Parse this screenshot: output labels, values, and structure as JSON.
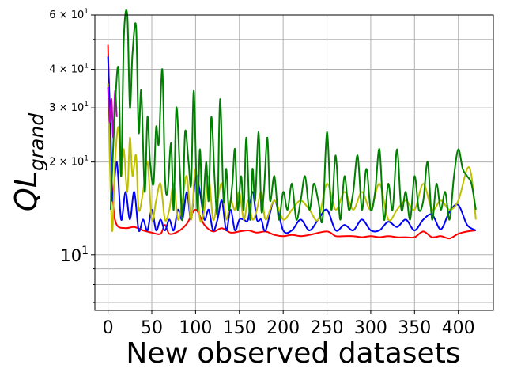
{
  "chart_data": {
    "type": "line",
    "xlabel": "New observed datasets",
    "ylabel_main": "QL",
    "ylabel_sub": "grand",
    "yscale": "log",
    "xlim": [
      -15,
      440
    ],
    "ylim": [
      6.6,
      60
    ],
    "grid": true,
    "x_ticks": [
      0,
      50,
      100,
      150,
      200,
      250,
      300,
      350,
      400
    ],
    "x_tick_labels": [
      "0",
      "50",
      "100",
      "150",
      "200",
      "250",
      "300",
      "350",
      "400"
    ],
    "y_major_ticks": [
      {
        "value": 10,
        "base": "10",
        "exp": "1",
        "mult": ""
      },
      {
        "value": 20,
        "base": "10",
        "exp": "1",
        "mult": "2 × "
      },
      {
        "value": 30,
        "base": "10",
        "exp": "1",
        "mult": "3 × "
      },
      {
        "value": 40,
        "base": "10",
        "exp": "1",
        "mult": "4 × "
      },
      {
        "value": 60,
        "base": "10",
        "exp": "1",
        "mult": "6 × "
      }
    ],
    "y_minor_gridlines": [
      7,
      8,
      9,
      50
    ],
    "series": [
      {
        "color": "#ff0000",
        "x": [
          0,
          3,
          6,
          10,
          20,
          30,
          40,
          50,
          60,
          65,
          70,
          80,
          90,
          100,
          110,
          120,
          130,
          140,
          150,
          160,
          170,
          180,
          190,
          200,
          210,
          220,
          230,
          250,
          260,
          270,
          280,
          290,
          300,
          310,
          320,
          330,
          340,
          350,
          360,
          370,
          380,
          390,
          400,
          410,
          420
        ],
        "y": [
          48,
          22,
          14.5,
          12.5,
          12.2,
          12.3,
          12.0,
          11.8,
          11.7,
          12.5,
          11.7,
          11.9,
          12.6,
          14.0,
          12.5,
          11.9,
          12.2,
          11.8,
          11.9,
          12.0,
          11.8,
          11.9,
          11.6,
          11.5,
          11.6,
          11.5,
          11.6,
          11.9,
          11.5,
          11.5,
          11.5,
          11.4,
          11.5,
          11.4,
          11.5,
          11.4,
          11.4,
          11.4,
          11.9,
          11.4,
          11.5,
          11.3,
          11.7,
          11.9,
          12.0
        ]
      },
      {
        "color": "#0000ff",
        "x": [
          0,
          3,
          5,
          10,
          15,
          20,
          25,
          30,
          35,
          40,
          45,
          50,
          55,
          60,
          65,
          70,
          75,
          80,
          85,
          90,
          95,
          100,
          105,
          110,
          115,
          120,
          125,
          130,
          135,
          140,
          145,
          150,
          155,
          160,
          165,
          170,
          175,
          180,
          190,
          200,
          210,
          220,
          230,
          240,
          250,
          260,
          270,
          280,
          290,
          300,
          310,
          320,
          330,
          340,
          350,
          360,
          370,
          380,
          390,
          400,
          410,
          420
        ],
        "y": [
          44,
          25,
          15,
          20,
          13,
          16,
          13,
          16,
          12,
          13,
          12,
          14,
          12,
          13,
          12,
          13,
          12,
          14,
          13,
          16,
          13,
          18,
          16,
          13,
          14,
          12,
          13,
          15,
          12,
          14,
          12,
          13,
          13,
          13,
          16,
          13,
          13,
          12,
          15,
          12,
          12,
          13,
          12,
          13,
          14,
          12,
          12.5,
          12,
          13,
          12,
          12,
          12.8,
          12.3,
          13,
          12,
          13,
          13.5,
          12.1,
          13.8,
          14.5,
          12.5,
          12
        ]
      },
      {
        "color": "#bfbf00",
        "x": [
          0,
          3,
          5,
          8,
          12,
          15,
          18,
          22,
          25,
          28,
          32,
          35,
          40,
          45,
          50,
          55,
          60,
          65,
          70,
          75,
          80,
          85,
          90,
          95,
          100,
          105,
          110,
          115,
          120,
          125,
          130,
          135,
          140,
          145,
          150,
          155,
          160,
          165,
          170,
          175,
          180,
          190,
          200,
          210,
          220,
          230,
          240,
          250,
          260,
          270,
          280,
          290,
          300,
          310,
          320,
          330,
          340,
          350,
          360,
          370,
          380,
          390,
          400,
          410,
          415,
          420
        ],
        "y": [
          36,
          16,
          12,
          20,
          26,
          18,
          22,
          16,
          24,
          18,
          21,
          14,
          16,
          20,
          13,
          15,
          17,
          13,
          14,
          17,
          13,
          15,
          18,
          13,
          19,
          13,
          14,
          18,
          13,
          15,
          17,
          13,
          15,
          14,
          16,
          13,
          15,
          13,
          14,
          16,
          13,
          15,
          13,
          14,
          15,
          14,
          13,
          17,
          14,
          16,
          14,
          16,
          14,
          17,
          13,
          14,
          15,
          14,
          17,
          14,
          15,
          14,
          15,
          19,
          18,
          13
        ]
      },
      {
        "color": "#c000c0",
        "x": [
          0,
          2,
          4,
          6,
          8,
          10
        ],
        "y": [
          35,
          27,
          32,
          24,
          34,
          28
        ]
      },
      {
        "color": "#008000",
        "x": [
          3,
          8,
          12,
          15,
          18,
          22,
          25,
          28,
          32,
          35,
          38,
          42,
          45,
          48,
          52,
          55,
          58,
          62,
          65,
          68,
          72,
          75,
          78,
          82,
          85,
          88,
          92,
          95,
          98,
          102,
          105,
          108,
          112,
          115,
          118,
          122,
          125,
          128,
          132,
          135,
          138,
          142,
          145,
          148,
          152,
          155,
          158,
          162,
          165,
          168,
          172,
          175,
          178,
          182,
          185,
          190,
          195,
          200,
          205,
          210,
          215,
          220,
          225,
          230,
          235,
          240,
          245,
          250,
          255,
          260,
          265,
          270,
          275,
          280,
          285,
          290,
          295,
          300,
          305,
          310,
          315,
          320,
          325,
          330,
          335,
          340,
          345,
          350,
          355,
          360,
          365,
          370,
          375,
          380,
          385,
          390,
          395,
          400,
          405,
          410,
          415,
          420
        ],
        "y": [
          14,
          30,
          40,
          18,
          50,
          60,
          30,
          45,
          55,
          25,
          34,
          16,
          28,
          20,
          17,
          26,
          23,
          40,
          18,
          16,
          23,
          14,
          30,
          19,
          13,
          25,
          20,
          17,
          34,
          14,
          22,
          14,
          20,
          15,
          28,
          17,
          14,
          32,
          15,
          19,
          14,
          17,
          22,
          14,
          18,
          14,
          24,
          13,
          19,
          15,
          25,
          14,
          16,
          24,
          15,
          18,
          13,
          16,
          14,
          17,
          13,
          15,
          18,
          14,
          17,
          15,
          13,
          25,
          14,
          21,
          13,
          18,
          14,
          16,
          21,
          14,
          19,
          14,
          16,
          22,
          13,
          17,
          14,
          22,
          14,
          16,
          13,
          18,
          14,
          15,
          20,
          13,
          17,
          14,
          16,
          13,
          18,
          22,
          19,
          18,
          17,
          14
        ]
      }
    ]
  }
}
